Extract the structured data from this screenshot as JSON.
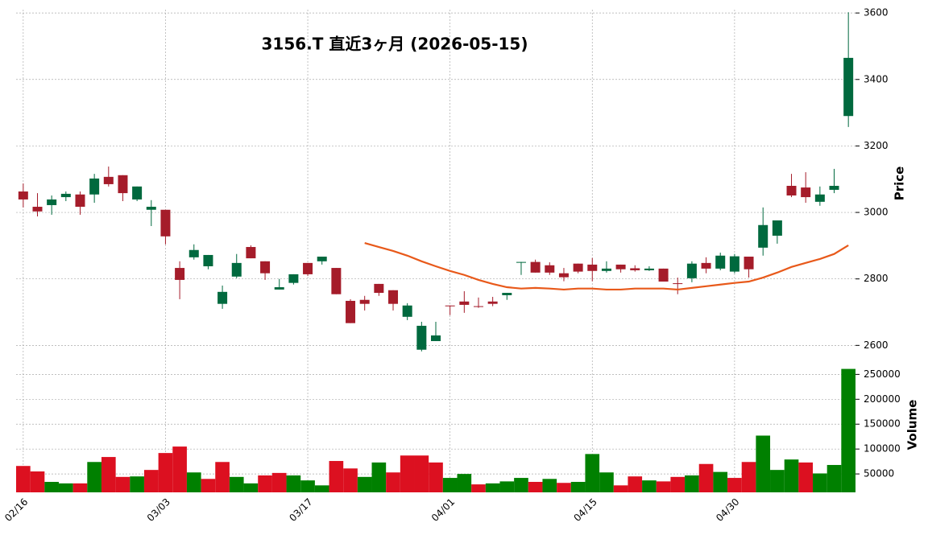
{
  "chart_data": {
    "type": "candlestick",
    "title": "3156.T  直近3ヶ月  (2026-05-15)",
    "categories": [
      "02/16",
      null,
      null,
      null,
      null,
      null,
      null,
      null,
      null,
      null,
      "03/03",
      null,
      null,
      null,
      null,
      null,
      null,
      null,
      null,
      null,
      "03/17",
      null,
      null,
      null,
      null,
      null,
      null,
      null,
      null,
      null,
      "04/01",
      null,
      null,
      null,
      null,
      null,
      null,
      null,
      null,
      null,
      "04/15",
      null,
      null,
      null,
      null,
      null,
      null,
      null,
      null,
      null,
      "04/30",
      null,
      null,
      null,
      null,
      null,
      null,
      null,
      null
    ],
    "open": [
      3063,
      3017,
      3022,
      3046,
      3054,
      3054,
      3107,
      3112,
      3039,
      3008,
      3008,
      2833,
      2865,
      2838,
      2725,
      2807,
      2896,
      2853,
      2768,
      2788,
      2848,
      2853,
      2833,
      2734,
      2737,
      2785,
      2766,
      2686,
      2587,
      2613,
      2720,
      2732,
      2718,
      2732,
      2751,
      2850,
      2851,
      2841,
      2817,
      2846,
      2843,
      2824,
      2843,
      2832,
      2826,
      2831,
      2787,
      2802,
      2848,
      2831,
      2822,
      2867,
      2894,
      2930,
      3080,
      3075,
      3032,
      3068,
      3290
    ],
    "high": [
      3087,
      3058,
      3051,
      3063,
      3063,
      3116,
      3138,
      3112,
      3078,
      3037,
      3008,
      2853,
      2904,
      2872,
      2780,
      2875,
      2901,
      2853,
      2800,
      2814,
      2848,
      2867,
      2833,
      2739,
      2749,
      2785,
      2766,
      2727,
      2671,
      2671,
      2720,
      2763,
      2744,
      2746,
      2758,
      2851,
      2858,
      2850,
      2833,
      2846,
      2863,
      2853,
      2843,
      2841,
      2838,
      2831,
      2804,
      2853,
      2865,
      2879,
      2875,
      2867,
      3015,
      2976,
      3116,
      3121,
      3078,
      3131,
      3602
    ],
    "low": [
      3015,
      2988,
      2993,
      3034,
      2993,
      3029,
      3078,
      3034,
      3034,
      2959,
      2904,
      2739,
      2858,
      2829,
      2710,
      2802,
      2862,
      2797,
      2768,
      2783,
      2809,
      2843,
      2754,
      2667,
      2705,
      2749,
      2705,
      2676,
      2582,
      2613,
      2691,
      2698,
      2713,
      2718,
      2737,
      2812,
      2819,
      2812,
      2793,
      2817,
      2793,
      2819,
      2819,
      2822,
      2824,
      2792,
      2754,
      2790,
      2817,
      2826,
      2817,
      2804,
      2870,
      2906,
      3046,
      3029,
      3020,
      3058,
      3257
    ],
    "close": [
      3039,
      3003,
      3039,
      3056,
      3017,
      3102,
      3085,
      3058,
      3078,
      3017,
      2928,
      2797,
      2887,
      2872,
      2761,
      2848,
      2862,
      2817,
      2775,
      2814,
      2814,
      2867,
      2754,
      2667,
      2725,
      2758,
      2725,
      2720,
      2659,
      2630,
      2719,
      2722,
      2717,
      2725,
      2758,
      2851,
      2819,
      2819,
      2805,
      2822,
      2824,
      2831,
      2829,
      2826,
      2831,
      2792,
      2785,
      2846,
      2831,
      2870,
      2868,
      2829,
      2962,
      2976,
      3051,
      3046,
      3054,
      3080,
      3465
    ],
    "up_color": "#00693e",
    "down_color": "#a51c2a",
    "ylabel": "Price",
    "ylim": [
      2550,
      3610
    ],
    "yticks": [
      2600,
      2800,
      3000,
      3200,
      3400,
      3600
    ],
    "grid": true,
    "ma": {
      "color": "#e8591a",
      "values": [
        null,
        null,
        null,
        null,
        null,
        null,
        null,
        null,
        null,
        null,
        null,
        null,
        null,
        null,
        null,
        null,
        null,
        null,
        null,
        null,
        null,
        null,
        null,
        null,
        2908,
        2896,
        2884,
        2870,
        2853,
        2838,
        2824,
        2812,
        2797,
        2785,
        2775,
        2771,
        2773,
        2771,
        2768,
        2771,
        2771,
        2768,
        2768,
        2771,
        2771,
        2771,
        2768,
        2773,
        2778,
        2783,
        2788,
        2792,
        2804,
        2819,
        2836,
        2848,
        2860,
        2875,
        2901
      ]
    },
    "volume": {
      "ylabel": "Volume",
      "up_color": "#008000",
      "down_color": "#dc1020",
      "ylim": [
        13000,
        270000
      ],
      "yticks": [
        50000,
        100000,
        150000,
        200000,
        250000
      ],
      "values": [
        66000,
        55000,
        34000,
        31000,
        31000,
        74000,
        84000,
        44000,
        45000,
        58000,
        92000,
        105000,
        53000,
        40000,
        74000,
        44000,
        31000,
        47000,
        52000,
        47000,
        37000,
        27000,
        76000,
        61000,
        44000,
        73000,
        53000,
        87000,
        87000,
        73000,
        42000,
        50000,
        29000,
        31000,
        35000,
        42000,
        34000,
        40000,
        32000,
        34000,
        90000,
        53000,
        27000,
        45000,
        37000,
        35000,
        44000,
        47000,
        70000,
        54000,
        42000,
        74000,
        127000,
        58000,
        79000,
        73000,
        51000,
        68000,
        261000
      ]
    }
  }
}
